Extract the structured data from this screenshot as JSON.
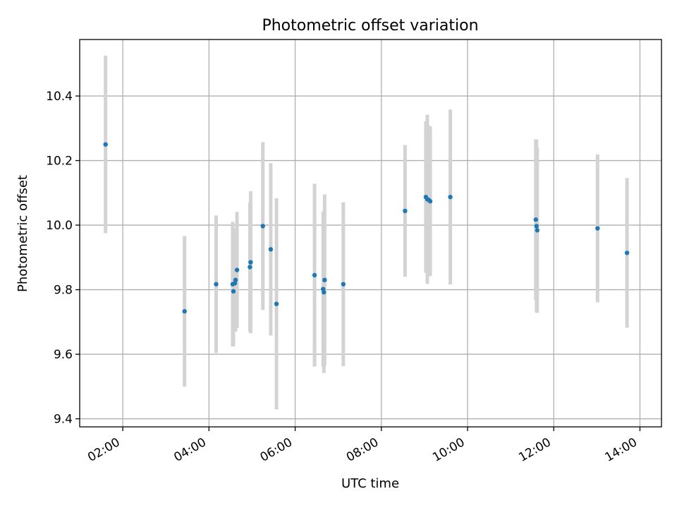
{
  "chart_data": {
    "type": "scatter",
    "title": "Photometric offset variation",
    "xlabel": "UTC time",
    "ylabel": "Photometric offset",
    "xlim": [
      "01:00",
      "14:30"
    ],
    "ylim": [
      9.375,
      10.575
    ],
    "x_ticks": [
      "02:00",
      "04:00",
      "06:00",
      "08:00",
      "10:00",
      "12:00",
      "14:00"
    ],
    "y_ticks": [
      9.4,
      9.6,
      9.8,
      10.0,
      10.2,
      10.4
    ],
    "grid": true,
    "colors": {
      "point": "#1f77b4",
      "errorbar": "#d3d3d3"
    },
    "series": [
      {
        "points": [
          {
            "x": "01:36",
            "y": 10.25,
            "err": 0.275
          },
          {
            "x": "03:26",
            "y": 9.733,
            "err": 0.233
          },
          {
            "x": "04:10",
            "y": 9.817,
            "err": 0.213
          },
          {
            "x": "04:33",
            "y": 9.817,
            "err": 0.193
          },
          {
            "x": "04:34",
            "y": 9.795,
            "err": 0.17
          },
          {
            "x": "04:36",
            "y": 9.82,
            "err": 0.145
          },
          {
            "x": "04:37",
            "y": 9.83,
            "err": 0.16
          },
          {
            "x": "04:39",
            "y": 9.861,
            "err": 0.18
          },
          {
            "x": "04:57",
            "y": 9.87,
            "err": 0.2
          },
          {
            "x": "04:58",
            "y": 9.885,
            "err": 0.22
          },
          {
            "x": "05:15",
            "y": 9.997,
            "err": 0.26
          },
          {
            "x": "05:26",
            "y": 9.925,
            "err": 0.267
          },
          {
            "x": "05:34",
            "y": 9.756,
            "err": 0.327
          },
          {
            "x": "06:27",
            "y": 9.845,
            "err": 0.283
          },
          {
            "x": "06:39",
            "y": 9.802,
            "err": 0.24
          },
          {
            "x": "06:40",
            "y": 9.792,
            "err": 0.25
          },
          {
            "x": "06:41",
            "y": 9.83,
            "err": 0.265
          },
          {
            "x": "07:07",
            "y": 9.817,
            "err": 0.254
          },
          {
            "x": "08:33",
            "y": 10.044,
            "err": 0.204
          },
          {
            "x": "09:02",
            "y": 10.087,
            "err": 0.235
          },
          {
            "x": "09:04",
            "y": 10.08,
            "err": 0.262
          },
          {
            "x": "09:06",
            "y": 10.078,
            "err": 0.23
          },
          {
            "x": "09:08",
            "y": 10.074,
            "err": 0.232
          },
          {
            "x": "09:36",
            "y": 10.087,
            "err": 0.271
          },
          {
            "x": "11:35",
            "y": 10.017,
            "err": 0.249
          },
          {
            "x": "11:36",
            "y": 9.997,
            "err": 0.267
          },
          {
            "x": "11:37",
            "y": 9.984,
            "err": 0.256
          },
          {
            "x": "13:01",
            "y": 9.99,
            "err": 0.229
          },
          {
            "x": "13:42",
            "y": 9.914,
            "err": 0.232
          }
        ]
      }
    ]
  }
}
